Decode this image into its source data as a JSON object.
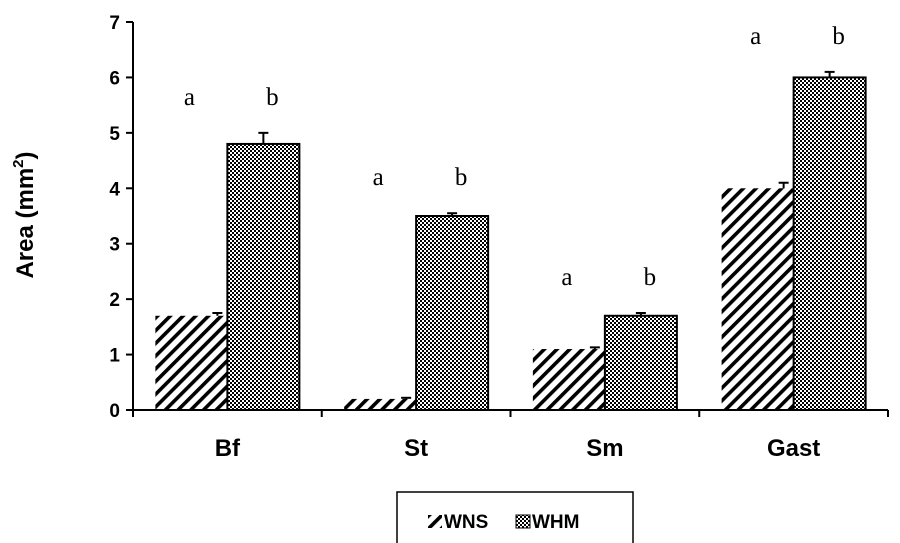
{
  "chart_data": {
    "type": "bar",
    "categories": [
      "Bf",
      "St",
      "Sm",
      "Gast"
    ],
    "series": [
      {
        "name": "WNS",
        "values": [
          1.7,
          0.2,
          1.1,
          4.0
        ],
        "errors": [
          0.05,
          0.02,
          0.03,
          0.1
        ],
        "labels": [
          "a",
          "a",
          "a",
          "a"
        ],
        "pattern": "diagonal-hatch"
      },
      {
        "name": "WHM",
        "values": [
          4.8,
          3.5,
          1.7,
          6.0
        ],
        "errors": [
          0.2,
          0.05,
          0.05,
          0.1
        ],
        "labels": [
          "b",
          "b",
          "b",
          "b"
        ],
        "pattern": "crosshatch"
      }
    ],
    "ylabel": "Area (mm",
    "ylabel_superscript": "2",
    "ylabel_close": ")",
    "ylim": [
      0,
      7
    ],
    "yticks": [
      "0",
      "1",
      "2",
      "3",
      "4",
      "5",
      "6",
      "7"
    ],
    "grid": false,
    "legend_position": "bottom-center",
    "colors": {
      "bar_fill": "#ffffff",
      "ink": "#000000"
    }
  }
}
